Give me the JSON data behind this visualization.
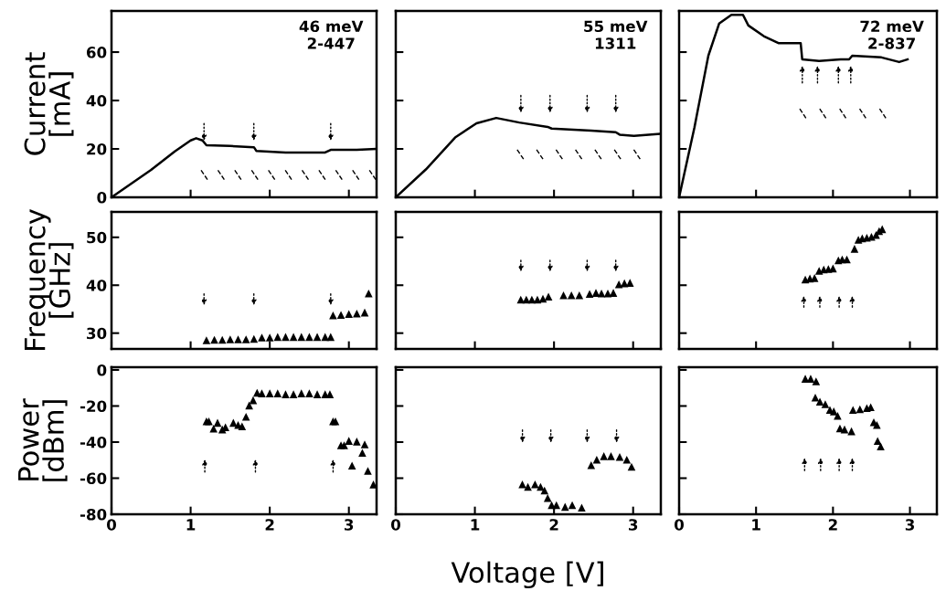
{
  "chart_data": [
    {
      "type": "line",
      "ylabel": "Current\n[mA]",
      "xlim": [
        0,
        3.35
      ],
      "xticks": [
        0,
        1,
        2,
        3
      ],
      "ylim": [
        0,
        77
      ],
      "yticks": [
        0,
        20,
        40,
        60
      ],
      "tick_labels": "y",
      "series": [
        {
          "color": "#000000",
          "x": [
            0,
            0.5,
            0.8,
            1.0,
            1.07,
            1.15,
            1.2,
            1.5,
            1.8,
            1.83,
            2.2,
            2.7,
            2.77,
            3.1,
            3.34
          ],
          "values": [
            0,
            11.3,
            19,
            23.5,
            24.4,
            23.5,
            21.5,
            21.2,
            20.7,
            19.2,
            18.5,
            18.5,
            19.6,
            19.6,
            20
          ]
        }
      ],
      "annotations": [
        "46 meV\n2-447"
      ]
    },
    {
      "type": "line",
      "xlim": [
        0,
        3.35
      ],
      "xticks": [
        0,
        1,
        2,
        3
      ],
      "ylim": [
        0,
        77
      ],
      "yticks": [
        0,
        20,
        40,
        60
      ],
      "tick_labels": false,
      "series": [
        {
          "color": "#000000",
          "x": [
            0,
            0.38,
            0.75,
            1.02,
            1.27,
            1.56,
            1.92,
            1.97,
            2.47,
            2.78,
            2.83,
            3.01,
            3.33
          ],
          "values": [
            0,
            11.5,
            24.7,
            30.6,
            32.8,
            30.9,
            29.1,
            28.4,
            27.6,
            26.9,
            25.9,
            25.4,
            26.2
          ]
        }
      ],
      "annotations": [
        "55 meV\n1311"
      ]
    },
    {
      "type": "line",
      "xlim": [
        0,
        3.35
      ],
      "xticks": [
        0,
        1,
        2,
        3
      ],
      "ylim": [
        0,
        77
      ],
      "yticks": [
        0,
        20,
        40,
        60
      ],
      "tick_labels": false,
      "series": [
        {
          "color": "#000000",
          "x": [
            0,
            0.2,
            0.38,
            0.52,
            0.68,
            0.83,
            0.9,
            1.1,
            1.29,
            1.58,
            1.6,
            1.82,
            2.1,
            2.21,
            2.25,
            2.63,
            2.86,
            2.97
          ],
          "values": [
            0,
            29,
            58.5,
            71.8,
            75.4,
            75.4,
            71,
            66.6,
            63.7,
            63.7,
            57,
            56.3,
            57,
            57,
            58.5,
            57.8,
            55.9,
            57
          ]
        }
      ],
      "annotations": [
        "72 meV\n2-837"
      ]
    },
    {
      "type": "scatter",
      "marker": "triangle",
      "ylabel": "Frequency\n[GHz]",
      "xlim": [
        0,
        3.35
      ],
      "xticks": [
        0,
        1,
        2,
        3
      ],
      "ylim": [
        26.7,
        55.3
      ],
      "yticks": [
        30,
        40,
        50
      ],
      "tick_labels": "y",
      "series": [
        {
          "color": "#000000",
          "x": [
            1.2,
            1.3,
            1.4,
            1.5,
            1.6,
            1.7,
            1.8,
            1.9,
            2.0,
            2.1,
            2.2,
            2.3,
            2.4,
            2.5,
            2.6,
            2.7,
            2.77,
            2.8,
            2.9,
            3.0,
            3.1,
            3.2,
            3.25
          ],
          "values": [
            28.5,
            28.6,
            28.6,
            28.7,
            28.7,
            28.7,
            28.8,
            29.1,
            29.1,
            29.2,
            29.2,
            29.2,
            29.2,
            29.2,
            29.2,
            29.2,
            29.2,
            33.7,
            33.8,
            34.0,
            34.1,
            34.3,
            38.3
          ]
        }
      ]
    },
    {
      "type": "scatter",
      "marker": "triangle",
      "xlim": [
        0,
        3.35
      ],
      "xticks": [
        0,
        1,
        2,
        3
      ],
      "ylim": [
        26.7,
        55.3
      ],
      "yticks": [
        30,
        40,
        50
      ],
      "tick_labels": false,
      "series": [
        {
          "color": "#000000",
          "x": [
            1.58,
            1.65,
            1.72,
            1.79,
            1.86,
            1.93,
            2.12,
            2.22,
            2.32,
            2.45,
            2.53,
            2.6,
            2.68,
            2.75,
            2.82,
            2.89,
            2.96
          ],
          "values": [
            37.0,
            37.0,
            37.0,
            37.0,
            37.2,
            37.6,
            37.9,
            37.9,
            37.9,
            38.2,
            38.4,
            38.3,
            38.3,
            38.4,
            40.2,
            40.4,
            40.5
          ]
        }
      ]
    },
    {
      "type": "scatter",
      "marker": "triangle",
      "xlim": [
        0,
        3.35
      ],
      "xticks": [
        0,
        1,
        2,
        3
      ],
      "ylim": [
        26.7,
        55.3
      ],
      "yticks": [
        30,
        40,
        50
      ],
      "tick_labels": false,
      "series": [
        {
          "color": "#000000",
          "x": [
            1.64,
            1.7,
            1.76,
            1.82,
            1.88,
            1.94,
            2.0,
            2.07,
            2.12,
            2.18,
            2.28,
            2.33,
            2.38,
            2.44,
            2.5,
            2.56,
            2.6,
            2.64
          ],
          "values": [
            41.2,
            41.4,
            41.5,
            43.0,
            43.3,
            43.4,
            43.5,
            45.2,
            45.4,
            45.4,
            47.6,
            49.5,
            49.8,
            49.9,
            50.1,
            50.5,
            51.3,
            51.7
          ]
        }
      ]
    },
    {
      "type": "scatter",
      "marker": "triangle",
      "ylabel": "Power\n[dBm]",
      "xlim": [
        0,
        3.35
      ],
      "xticks": [
        0,
        1,
        2,
        3
      ],
      "ylim": [
        -80,
        1.5
      ],
      "yticks": [
        0,
        -20,
        -40,
        -60,
        -80
      ],
      "series": [
        {
          "color": "#000000",
          "x": [
            1.2,
            1.23,
            1.29,
            1.34,
            1.4,
            1.44,
            1.54,
            1.6,
            1.65,
            1.7,
            1.74,
            1.79,
            1.84,
            1.9,
            2.0,
            2.1,
            2.2,
            2.3,
            2.4,
            2.5,
            2.6,
            2.7,
            2.76,
            2.8,
            2.83,
            2.9,
            2.94,
            3.0,
            3.04,
            3.1,
            3.17,
            3.2,
            3.24,
            3.31
          ],
          "values": [
            -28.5,
            -28.5,
            -32.5,
            -29.3,
            -33,
            -31.8,
            -29.3,
            -30.5,
            -31.3,
            -26,
            -19.7,
            -16.8,
            -12.7,
            -13,
            -13,
            -13,
            -13.5,
            -13.5,
            -13,
            -13,
            -13.5,
            -13.5,
            -13.5,
            -28.5,
            -28.5,
            -41.8,
            -41.8,
            -39.3,
            -53,
            -39.7,
            -46,
            -41.3,
            -56,
            -63.5
          ]
        }
      ]
    },
    {
      "type": "scatter",
      "marker": "triangle",
      "xlabel": "Voltage [V]",
      "xlim": [
        0,
        3.35
      ],
      "xticks": [
        0,
        1,
        2,
        3
      ],
      "ylim": [
        -80,
        1.5
      ],
      "yticks": [
        0,
        -20,
        -40,
        -60,
        -80
      ],
      "tick_labels": "x",
      "series": [
        {
          "color": "#000000",
          "x": [
            1.6,
            1.67,
            1.76,
            1.83,
            1.88,
            1.92,
            1.97,
            2.03,
            2.14,
            2.23,
            2.35,
            2.47,
            2.54,
            2.63,
            2.72,
            2.83,
            2.92,
            2.98
          ],
          "values": [
            -63.4,
            -64.8,
            -63.4,
            -64.8,
            -66.8,
            -71,
            -74.9,
            -74.9,
            -75.9,
            -74.9,
            -76.3,
            -52.8,
            -49.8,
            -47.8,
            -47.8,
            -48.2,
            -49.8,
            -53.7
          ]
        }
      ]
    },
    {
      "type": "scatter",
      "marker": "triangle",
      "xlim": [
        0,
        3.35
      ],
      "xticks": [
        0,
        1,
        2,
        3
      ],
      "ylim": [
        -80,
        1.5
      ],
      "yticks": [
        0,
        -20,
        -40,
        -60,
        -80
      ],
      "tick_labels": "x",
      "series": [
        {
          "color": "#000000",
          "x": [
            1.64,
            1.71,
            1.78,
            1.77,
            1.83,
            1.9,
            1.96,
            2.01,
            2.06,
            2.09,
            2.15,
            2.24,
            2.26,
            2.35,
            2.44,
            2.49,
            2.53,
            2.57,
            2.58,
            2.62
          ],
          "values": [
            -4.9,
            -4.9,
            -6.3,
            -15.3,
            -17.6,
            -19,
            -22.2,
            -23,
            -25.5,
            -32.4,
            -33,
            -34,
            -22.2,
            -21.8,
            -21.2,
            -20.6,
            -29,
            -30.5,
            -39.4,
            -42.4
          ]
        }
      ]
    }
  ]
}
